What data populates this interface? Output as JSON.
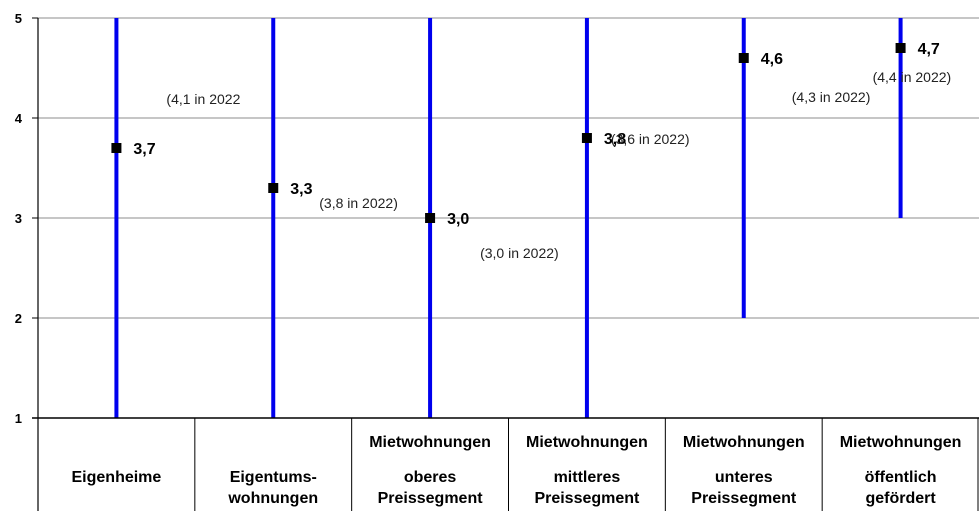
{
  "chart_data": {
    "type": "range",
    "ylim": [
      1,
      5
    ],
    "yticks": [
      "1",
      "2",
      "3",
      "4",
      "5"
    ],
    "grid": true,
    "series_color": "#0000ee",
    "categories": [
      {
        "group": "",
        "label_lines": [
          "Eigenheime"
        ],
        "range": [
          1,
          5
        ],
        "value": 3.7,
        "value_label": "3,7",
        "note": "(4,1 in 2022"
      },
      {
        "group": "",
        "label_lines": [
          "Eigentums-",
          "wohnungen"
        ],
        "range": [
          1,
          5
        ],
        "value": 3.3,
        "value_label": "3,3",
        "note": "(3,8 in 2022)"
      },
      {
        "group": "Mietwohnungen",
        "label_lines": [
          "oberes",
          "Preissegment"
        ],
        "range": [
          1,
          5
        ],
        "value": 3.0,
        "value_label": "3,0",
        "note": "(3,0 in 2022)"
      },
      {
        "group": "Mietwohnungen",
        "label_lines": [
          "mittleres",
          "Preissegment"
        ],
        "range": [
          1,
          5
        ],
        "value": 3.8,
        "value_label": "3,8",
        "note": "(3,6 in 2022)"
      },
      {
        "group": "Mietwohnungen",
        "label_lines": [
          "unteres",
          "Preissegment"
        ],
        "range": [
          2,
          5
        ],
        "value": 4.6,
        "value_label": "4,6",
        "note": "(4,3 in 2022)"
      },
      {
        "group": "Mietwohnungen",
        "label_lines": [
          "öffentlich",
          "gefördert"
        ],
        "range": [
          3,
          5
        ],
        "value": 4.7,
        "value_label": "4,7",
        "note": "(4,4 in 2022)"
      }
    ]
  }
}
